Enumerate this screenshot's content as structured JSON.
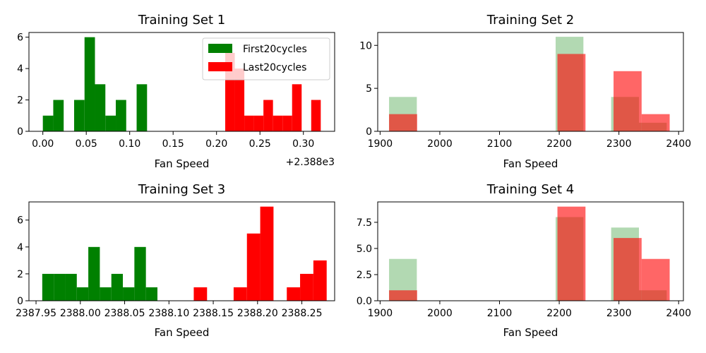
{
  "colors": {
    "first": "#008000",
    "last": "#ff0000"
  },
  "chart_data": [
    {
      "type": "histogram",
      "title": "Training Set 1",
      "xlabel": "Fan Speed",
      "ylabel": "",
      "offset_label": "+2.388e3",
      "xlim": [
        -0.016,
        0.336
      ],
      "ylim": [
        0,
        6.3
      ],
      "xticks": [
        0,
        0.05,
        0.1,
        0.15,
        0.2,
        0.25,
        0.3
      ],
      "xtick_labels": [
        "0.00",
        "0.05",
        "0.10",
        "0.15",
        "0.20",
        "0.25",
        "0.30"
      ],
      "yticks": [
        0,
        2,
        4,
        6
      ],
      "ytick_labels": [
        "0",
        "2",
        "4",
        "6"
      ],
      "legend": {
        "placement": "top-right",
        "entries": [
          "First20cycles",
          "Last20cycles"
        ]
      },
      "series": [
        {
          "name": "First20cycles",
          "color": "#008000",
          "opacity": 1,
          "bin_edges": [
            0,
            0.012,
            0.024,
            0.036,
            0.048,
            0.06,
            0.072,
            0.084,
            0.096,
            0.108,
            0.12
          ],
          "counts": [
            1,
            2,
            0,
            2,
            6,
            3,
            1,
            2,
            0,
            3
          ]
        },
        {
          "name": "Last20cycles",
          "color": "#ff0000",
          "opacity": 1,
          "bin_edges": [
            0.21,
            0.221,
            0.232,
            0.243,
            0.254,
            0.265,
            0.276,
            0.287,
            0.298,
            0.309,
            0.32
          ],
          "counts": [
            5,
            4,
            1,
            1,
            2,
            1,
            1,
            3,
            0,
            2
          ]
        }
      ]
    },
    {
      "type": "histogram",
      "title": "Training Set 2",
      "xlabel": "Fan Speed",
      "ylabel": "",
      "xlim": [
        1896,
        2408
      ],
      "ylim": [
        0,
        11.5
      ],
      "xticks": [
        1900,
        2000,
        2100,
        2200,
        2300,
        2400
      ],
      "xtick_labels": [
        "1900",
        "2000",
        "2100",
        "2200",
        "2300",
        "2400"
      ],
      "yticks": [
        0,
        5,
        10
      ],
      "ytick_labels": [
        "0",
        "5",
        "10"
      ],
      "series": [
        {
          "name": "First20cycles",
          "color": "#008000",
          "opacity": 0.3,
          "bin_edges": [
            1915,
            1961.5,
            2008,
            2054.5,
            2101,
            2147.5,
            2194,
            2240.5,
            2287,
            2333.5,
            2380
          ],
          "counts": [
            4,
            0,
            0,
            0,
            0,
            0,
            11,
            0,
            4,
            1
          ]
        },
        {
          "name": "Last20cycles",
          "color": "#ff0000",
          "opacity": 0.6,
          "bin_edges": [
            1915,
            1962,
            2009,
            2056,
            2103,
            2150,
            2197,
            2244,
            2291,
            2338,
            2385
          ],
          "counts": [
            2,
            0,
            0,
            0,
            0,
            0,
            9,
            0,
            7,
            2
          ]
        }
      ]
    },
    {
      "type": "histogram",
      "title": "Training Set 3",
      "xlabel": "Fan Speed",
      "ylabel": "",
      "xlim": [
        2387.942,
        2388.287
      ],
      "ylim": [
        0,
        7.35
      ],
      "xticks": [
        2387.95,
        2388.0,
        2388.05,
        2388.1,
        2388.15,
        2388.2,
        2388.25
      ],
      "xtick_labels": [
        "2387.95",
        "2388.00",
        "2388.05",
        "2388.10",
        "2388.15",
        "2388.20",
        "2388.25"
      ],
      "yticks": [
        0,
        2,
        4,
        6
      ],
      "ytick_labels": [
        "0",
        "2",
        "4",
        "6"
      ],
      "series": [
        {
          "name": "First20cycles",
          "color": "#008000",
          "opacity": 1,
          "bin_edges": [
            2387.957,
            2387.97,
            2387.983,
            2387.996,
            2388.009,
            2388.022,
            2388.035,
            2388.048,
            2388.061,
            2388.074,
            2388.087
          ],
          "counts": [
            2,
            2,
            2,
            1,
            4,
            1,
            2,
            1,
            4,
            1
          ]
        },
        {
          "name": "Last20cycles",
          "color": "#ff0000",
          "opacity": 1,
          "bin_edges": [
            2388.128,
            2388.143,
            2388.158,
            2388.173,
            2388.188,
            2388.203,
            2388.218,
            2388.233,
            2388.248,
            2388.263,
            2388.278
          ],
          "counts": [
            1,
            0,
            0,
            1,
            5,
            7,
            0,
            1,
            2,
            3
          ]
        }
      ]
    },
    {
      "type": "histogram",
      "title": "Training Set 4",
      "xlabel": "Fan Speed",
      "ylabel": "",
      "xlim": [
        1896,
        2408
      ],
      "ylim": [
        0,
        9.45
      ],
      "xticks": [
        1900,
        2000,
        2100,
        2200,
        2300,
        2400
      ],
      "xtick_labels": [
        "1900",
        "2000",
        "2100",
        "2200",
        "2300",
        "2400"
      ],
      "yticks": [
        0,
        2.5,
        5,
        7.5
      ],
      "ytick_labels": [
        "0.0",
        "2.5",
        "5.0",
        "7.5"
      ],
      "series": [
        {
          "name": "First20cycles",
          "color": "#008000",
          "opacity": 0.3,
          "bin_edges": [
            1915,
            1961.5,
            2008,
            2054.5,
            2101,
            2147.5,
            2194,
            2240.5,
            2287,
            2333.5,
            2380
          ],
          "counts": [
            4,
            0,
            0,
            0,
            0,
            0,
            8,
            0,
            7,
            1
          ]
        },
        {
          "name": "Last20cycles",
          "color": "#ff0000",
          "opacity": 0.6,
          "bin_edges": [
            1915,
            1962,
            2009,
            2056,
            2103,
            2150,
            2197,
            2244,
            2291,
            2338,
            2385
          ],
          "counts": [
            1,
            0,
            0,
            0,
            0,
            0,
            9,
            0,
            6,
            4
          ]
        }
      ]
    }
  ]
}
